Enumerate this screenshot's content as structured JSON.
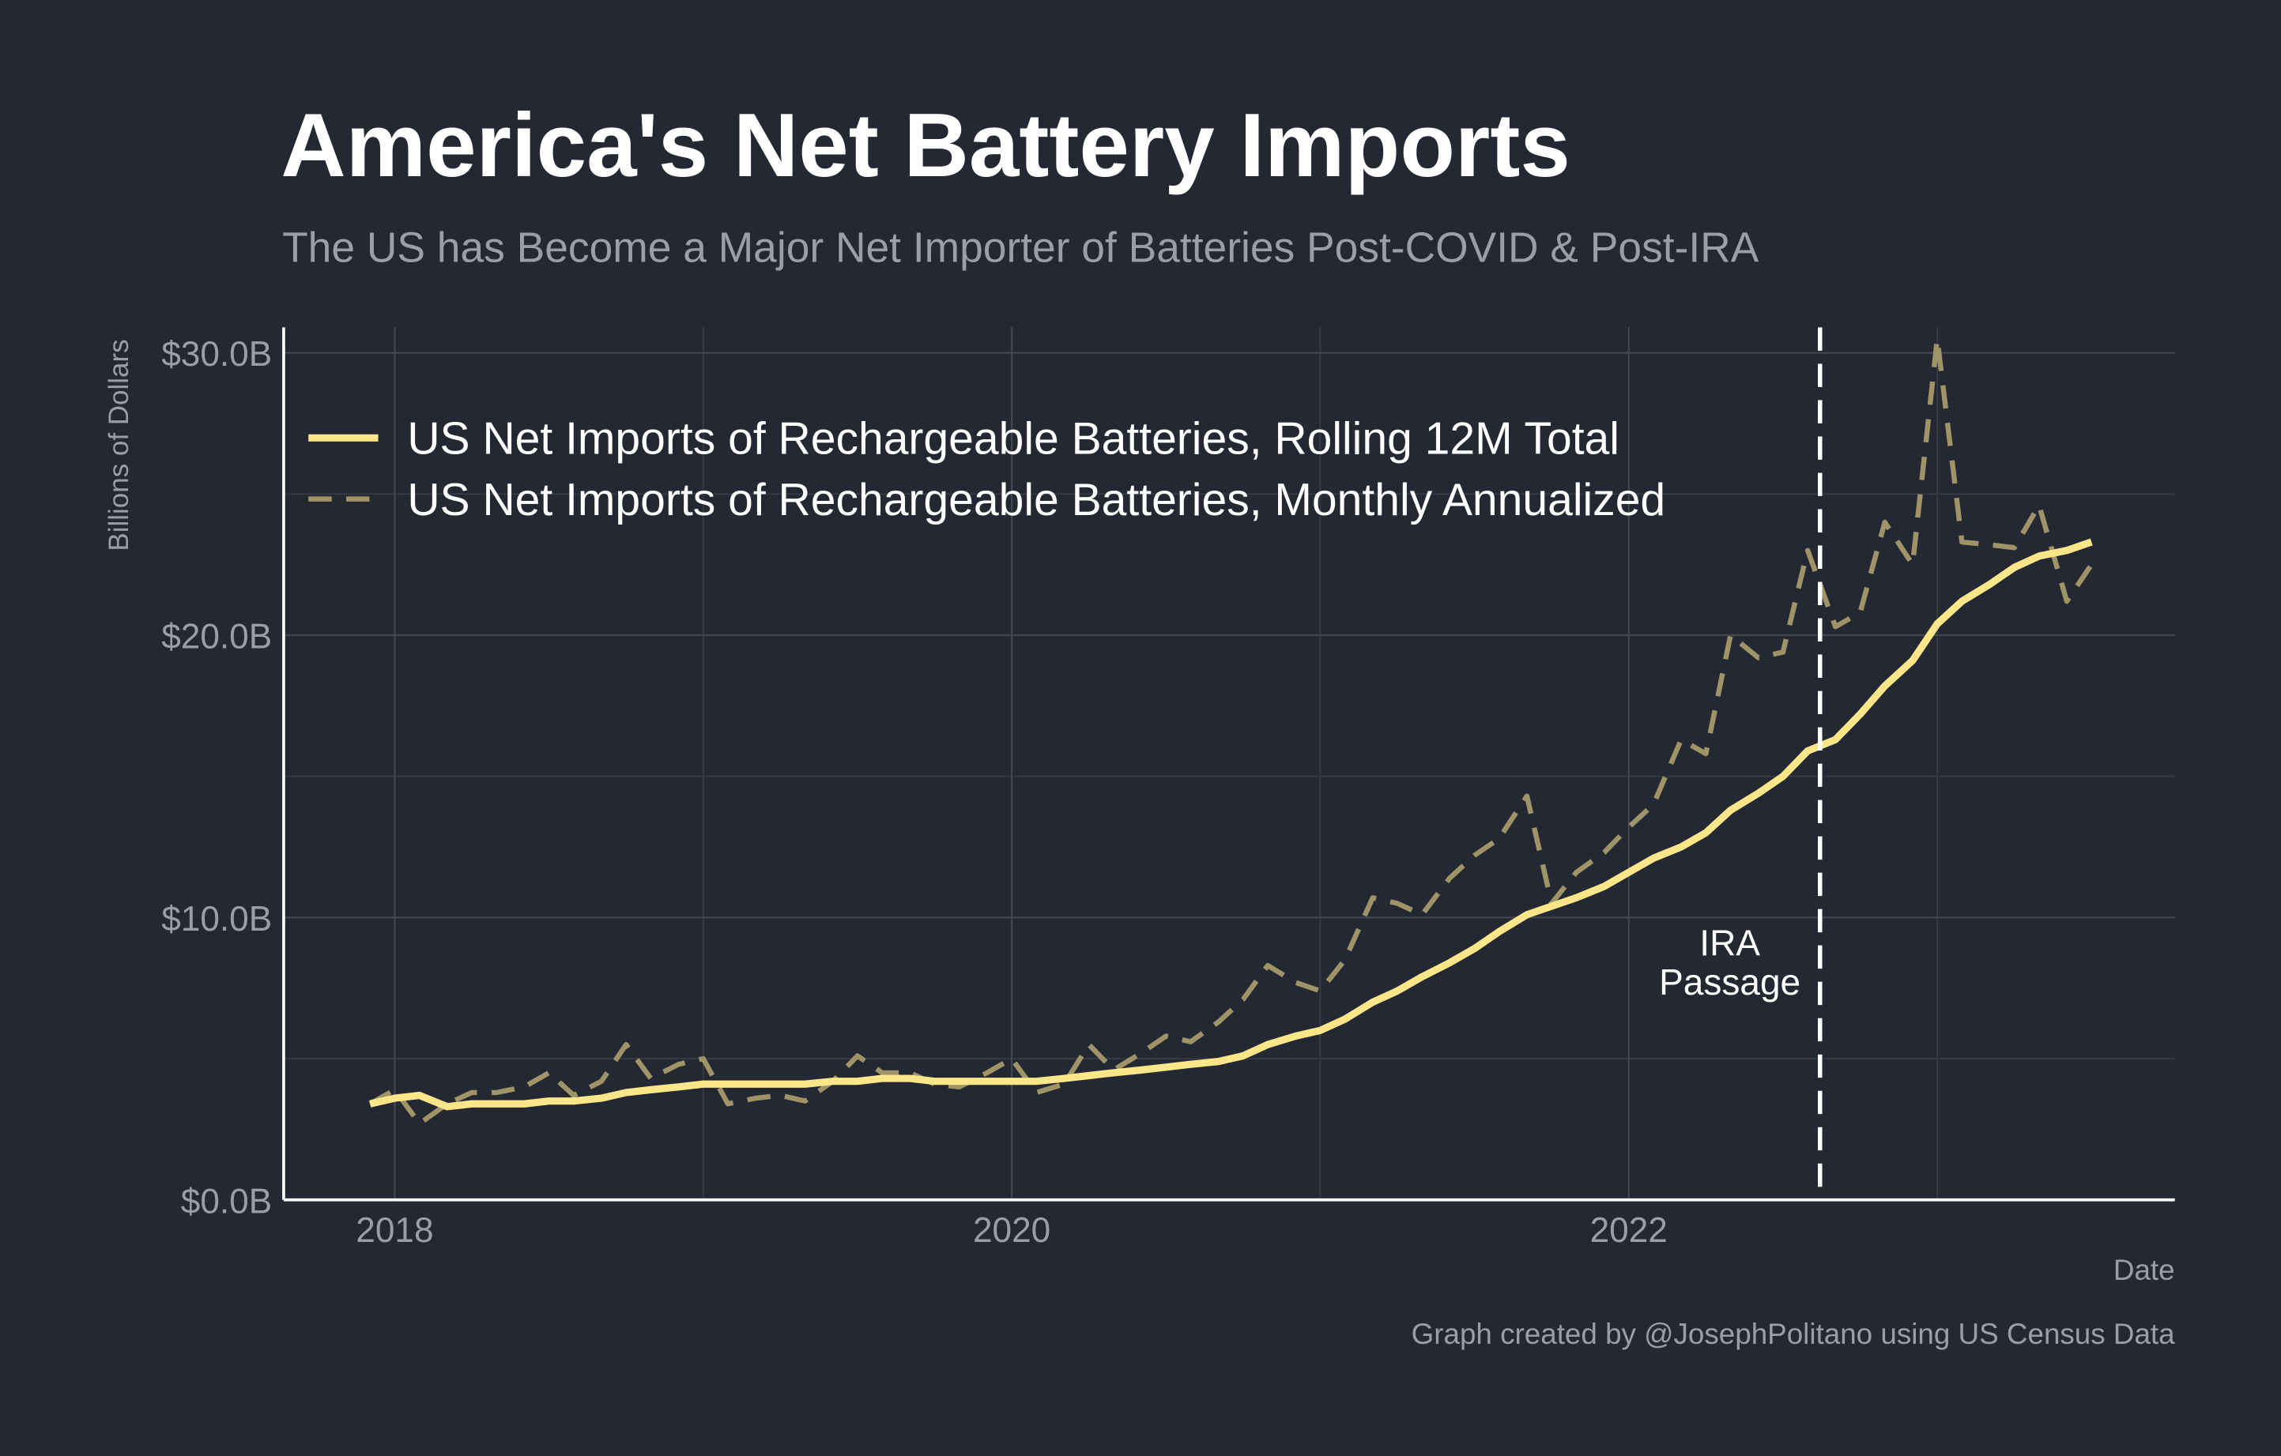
{
  "chart_data": {
    "type": "line",
    "title": "America's Net Battery Imports",
    "subtitle": "The US has Become a Major Net Importer of Batteries Post-COVID & Post-IRA",
    "ylabel": "Billions of Dollars",
    "xlabel": "Date",
    "caption": "Graph created by @JosephPolitano using US Census Data",
    "x": [
      2017.92,
      2018.0,
      2018.08,
      2018.17,
      2018.25,
      2018.33,
      2018.42,
      2018.5,
      2018.58,
      2018.67,
      2018.75,
      2018.83,
      2018.92,
      2019.0,
      2019.08,
      2019.17,
      2019.25,
      2019.33,
      2019.42,
      2019.5,
      2019.58,
      2019.67,
      2019.75,
      2019.83,
      2019.92,
      2020.0,
      2020.08,
      2020.17,
      2020.25,
      2020.33,
      2020.42,
      2020.5,
      2020.58,
      2020.67,
      2020.75,
      2020.83,
      2020.92,
      2021.0,
      2021.08,
      2021.17,
      2021.25,
      2021.33,
      2021.42,
      2021.5,
      2021.58,
      2021.67,
      2021.75,
      2021.83,
      2021.92,
      2022.0,
      2022.08,
      2022.17,
      2022.25,
      2022.33,
      2022.42,
      2022.5,
      2022.58,
      2022.67,
      2022.75,
      2022.83,
      2022.92,
      2023.0,
      2023.08,
      2023.17,
      2023.25,
      2023.33,
      2023.42,
      2023.5
    ],
    "series": [
      {
        "name": "US Net Imports of Rechargeable Batteries, Rolling 12M Total",
        "color": "#fde68a",
        "dash": false,
        "values": [
          3.4,
          3.6,
          3.7,
          3.3,
          3.4,
          3.4,
          3.4,
          3.5,
          3.5,
          3.6,
          3.8,
          3.9,
          4.0,
          4.1,
          4.1,
          4.1,
          4.1,
          4.1,
          4.2,
          4.2,
          4.3,
          4.3,
          4.2,
          4.2,
          4.2,
          4.2,
          4.2,
          4.3,
          4.4,
          4.5,
          4.6,
          4.7,
          4.8,
          4.9,
          5.1,
          5.5,
          5.8,
          6.0,
          6.4,
          7.0,
          7.4,
          7.9,
          8.4,
          8.9,
          9.5,
          10.1,
          10.4,
          10.7,
          11.1,
          11.6,
          12.1,
          12.5,
          13.0,
          13.8,
          14.4,
          15.0,
          15.9,
          16.3,
          17.2,
          18.2,
          19.1,
          20.4,
          21.2,
          21.8,
          22.4,
          22.8,
          23.0,
          23.3
        ]
      },
      {
        "name": "US Net Imports of Rechargeable Batteries, Monthly Annualized",
        "color": "#9e9468",
        "dash": true,
        "values": [
          3.4,
          3.9,
          2.7,
          3.4,
          3.8,
          3.8,
          4.0,
          4.5,
          3.7,
          4.2,
          5.5,
          4.3,
          4.8,
          5.0,
          3.4,
          3.6,
          3.7,
          3.5,
          4.2,
          5.1,
          4.5,
          4.5,
          4.1,
          4.0,
          4.5,
          5.0,
          3.8,
          4.1,
          5.5,
          4.6,
          5.2,
          5.8,
          5.6,
          6.3,
          7.1,
          8.3,
          7.7,
          7.4,
          8.5,
          10.7,
          10.5,
          10.1,
          11.4,
          12.2,
          12.8,
          14.3,
          10.5,
          11.6,
          12.3,
          13.2,
          14.0,
          16.3,
          15.8,
          20.0,
          19.2,
          19.4,
          23.0,
          20.3,
          20.8,
          24.0,
          22.5,
          30.5,
          23.3,
          23.2,
          23.1,
          24.6,
          21.2,
          22.5
        ]
      }
    ],
    "xlim": [
      2017.64,
      2023.77
    ],
    "ylim": [
      0,
      30.9
    ],
    "xticks": [
      2018,
      2020,
      2022
    ],
    "yticks": [
      {
        "value": 0,
        "label": "$0.0B"
      },
      {
        "value": 10,
        "label": "$10.0B"
      },
      {
        "value": 20,
        "label": "$20.0B"
      },
      {
        "value": 30,
        "label": "$30.0B"
      }
    ],
    "xminor": [
      2019,
      2021,
      2023
    ],
    "yminor": [
      5,
      15,
      25
    ],
    "grid": true,
    "legend": "upper left",
    "annotation": {
      "x": 2022.62,
      "text": [
        "IRA",
        "Passage"
      ]
    }
  }
}
